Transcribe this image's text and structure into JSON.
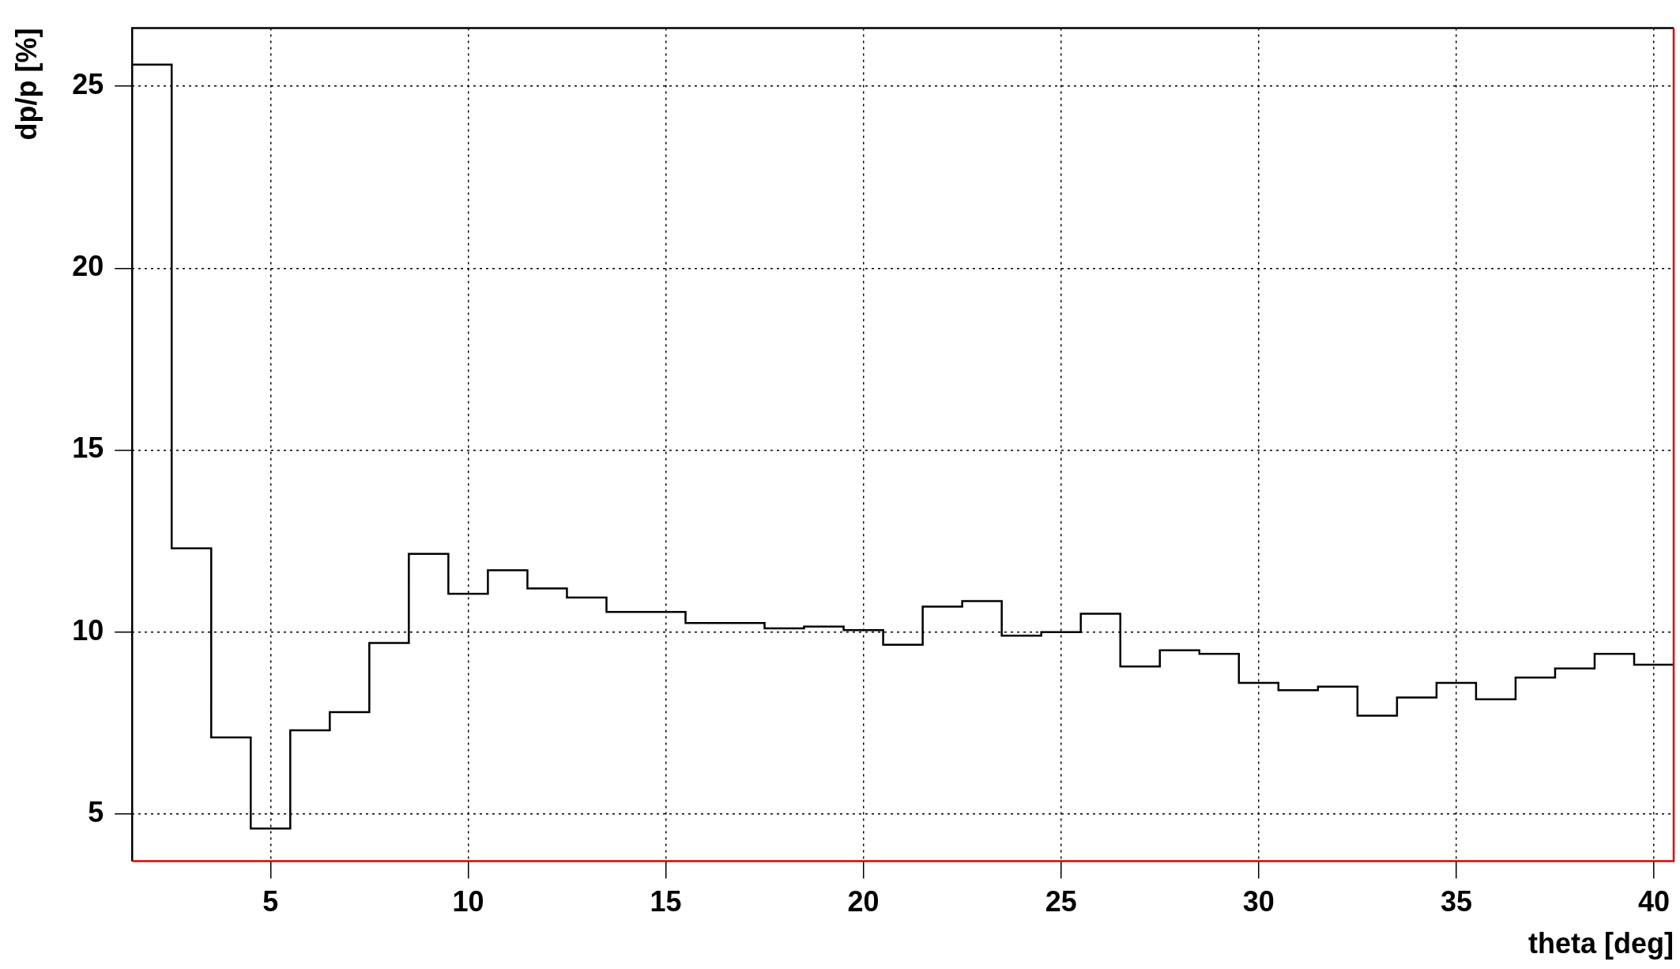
{
  "chart_data": {
    "type": "histogram",
    "xlabel": "theta [deg]",
    "ylabel": "dp/p [%]",
    "bins": [
      1.5,
      2.5,
      3.5,
      4.5,
      5.5,
      6.5,
      7.5,
      8.5,
      9.5,
      10.5,
      11.5,
      12.5,
      13.5,
      14.5,
      15.5,
      16.5,
      17.5,
      18.5,
      19.5,
      20.5,
      21.5,
      22.5,
      23.5,
      24.5,
      25.5,
      26.5,
      27.5,
      28.5,
      29.5,
      30.5,
      31.5,
      32.5,
      33.5,
      34.5,
      35.5,
      36.5,
      37.5,
      38.5,
      39.5,
      40.5
    ],
    "values": [
      25.6,
      12.3,
      7.1,
      4.6,
      7.3,
      7.8,
      9.7,
      12.15,
      11.05,
      11.7,
      11.2,
      10.95,
      10.55,
      10.55,
      10.25,
      10.25,
      10.1,
      10.15,
      10.05,
      9.65,
      10.7,
      10.85,
      9.9,
      10.0,
      10.5,
      9.05,
      9.5,
      9.4,
      8.6,
      8.4,
      8.5,
      7.7,
      8.2,
      8.6,
      8.15,
      8.75,
      9.0,
      9.4,
      9.1
    ],
    "color": "#000000",
    "xlim": [
      1.5,
      40.5
    ],
    "xticks": [
      5,
      10,
      15,
      20,
      25,
      30,
      35,
      40
    ],
    "ylim": [
      3.7,
      26.6
    ],
    "yticks": [
      5,
      10,
      15,
      20,
      25
    ],
    "grid": true
  }
}
